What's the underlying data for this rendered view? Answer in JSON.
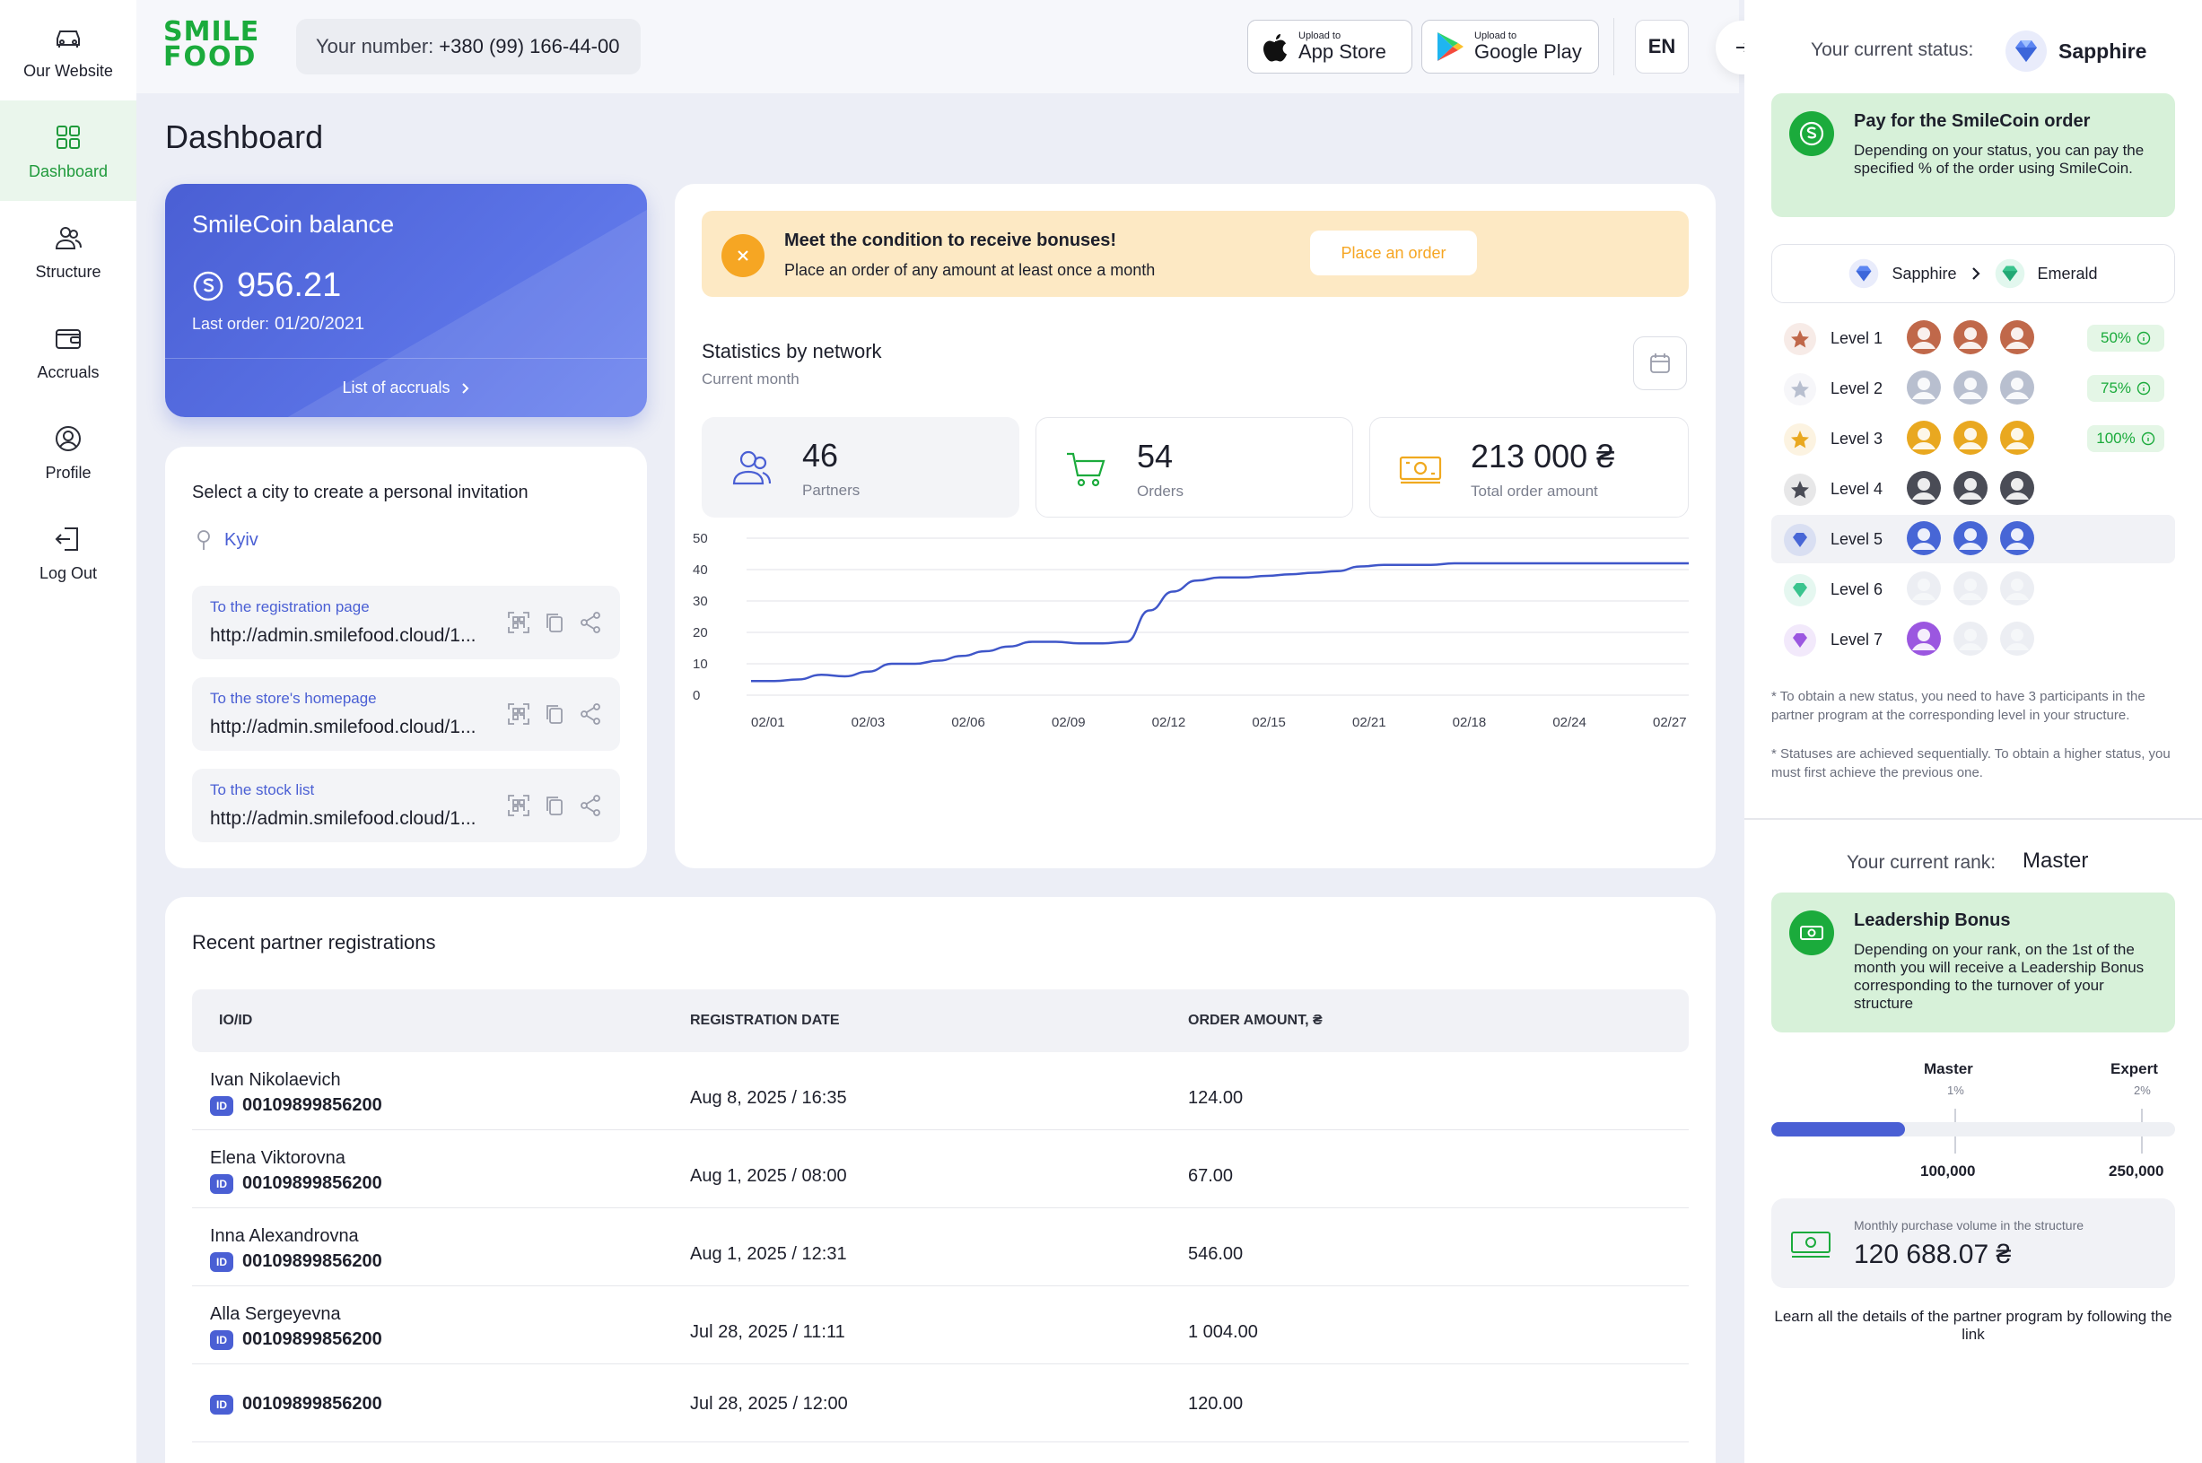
{
  "nav": {
    "items": [
      {
        "label": "Our Website",
        "icon": "car-icon"
      },
      {
        "label": "Dashboard",
        "icon": "grid-icon"
      },
      {
        "label": "Structure",
        "icon": "users-icon"
      },
      {
        "label": "Accruals",
        "icon": "wallet-icon"
      },
      {
        "label": "Profile",
        "icon": "user-icon"
      },
      {
        "label": "Log Out",
        "icon": "logout-icon"
      }
    ],
    "active": "Dashboard"
  },
  "header": {
    "logo_top": "SMILE",
    "logo_bottom": "FOOD",
    "phone_label": "Your number:",
    "phone_value": "+380 (99) 166-44-00",
    "app_store_small": "Upload to",
    "app_store": "App Store",
    "google_play_small": "Upload to",
    "google_play": "Google Play",
    "lang": "EN"
  },
  "page_title": "Dashboard",
  "balance": {
    "title": "SmileCoin balance",
    "amount": "956.21",
    "last_order_label": "Last order:",
    "last_order_date": "01/20/2021",
    "link": "List of accruals"
  },
  "city": {
    "title": "Select a city to create a personal invitation",
    "selected": "Kyiv",
    "links": [
      {
        "label": "To the registration page",
        "url": "http://admin.smilefood.cloud/1..."
      },
      {
        "label": "To the store's homepage",
        "url": "http://admin.smilefood.cloud/1..."
      },
      {
        "label": "To the stock list",
        "url": "http://admin.smilefood.cloud/1..."
      }
    ]
  },
  "banner": {
    "title": "Meet the condition to receive bonuses!",
    "text": "Place an order of any amount at least once a month",
    "button": "Place an order"
  },
  "stats": {
    "title": "Statistics by network",
    "subtitle": "Current month",
    "kpis": [
      {
        "value": "46",
        "label": "Partners"
      },
      {
        "value": "54",
        "label": "Orders"
      },
      {
        "value": "213 000 ₴",
        "label": "Total order amount"
      }
    ]
  },
  "chart_data": {
    "type": "line",
    "title": "Statistics by network",
    "xlabel": "",
    "ylabel": "",
    "ylim": [
      0,
      50
    ],
    "yticks": [
      0,
      10,
      20,
      30,
      40,
      50
    ],
    "x_tick_labels": [
      "02/01",
      "02/03",
      "02/06",
      "02/09",
      "02/12",
      "02/15",
      "02/21",
      "02/18",
      "02/24",
      "02/27"
    ],
    "grid": true,
    "color": "#3f56c9",
    "series": [
      {
        "name": "",
        "values": [
          4.5,
          4.5,
          5,
          6.5,
          6,
          7.5,
          10,
          10,
          11,
          12.5,
          14,
          15.5,
          17,
          17,
          16.5,
          16.5,
          17,
          27,
          33,
          36.5,
          37.5,
          37.5,
          38,
          38.5,
          39,
          39.5,
          41,
          41.5,
          41.5,
          41.5,
          42,
          42,
          42,
          42,
          42,
          42,
          42,
          42,
          42,
          42,
          42
        ]
      }
    ]
  },
  "recent": {
    "title": "Recent partner registrations",
    "columns": [
      "IO/ID",
      "REGISTRATION DATE",
      "ORDER AMOUNT, ₴"
    ],
    "id_badge": "ID",
    "rows": [
      {
        "name": "Ivan Nikolaevich",
        "id": "00109899856200",
        "date": "Aug 8, 2025 / 16:35",
        "amount": "124.00"
      },
      {
        "name": "Elena Viktorovna",
        "id": "00109899856200",
        "date": "Aug 1, 2025 / 08:00",
        "amount": "67.00"
      },
      {
        "name": "Inna Alexandrovna",
        "id": "00109899856200",
        "date": "Aug 1, 2025 / 12:31",
        "amount": "546.00"
      },
      {
        "name": "Alla Sergeyevna",
        "id": "00109899856200",
        "date": "Jul 28, 2025 / 11:11",
        "amount": "1 004.00"
      },
      {
        "name": "",
        "id": "00109899856200",
        "date": "Jul 28, 2025 / 12:00",
        "amount": "120.00"
      }
    ]
  },
  "right": {
    "status_label": "Your current status:",
    "status_value": "Sapphire",
    "pay_title": "Pay for the SmileCoin order",
    "pay_text": "Depending on your status, you can pay the specified % of the order using SmileCoin.",
    "progress_from": "Sapphire",
    "progress_to": "Emerald",
    "levels": [
      {
        "label": "Level 1",
        "pct": "50%",
        "color": "#c0684a"
      },
      {
        "label": "Level 2",
        "pct": "75%",
        "color": "#b8bfcf"
      },
      {
        "label": "Level 3",
        "pct": "100%",
        "color": "#e9a820"
      },
      {
        "label": "Level 4",
        "pct": "",
        "color": "#4a4c56"
      },
      {
        "label": "Level 5",
        "pct": "",
        "color": "#4766d6"
      },
      {
        "label": "Level 6",
        "pct": "",
        "color": "#3ac48e"
      },
      {
        "label": "Level 7",
        "pct": "",
        "color": "#9b57e0"
      }
    ],
    "note1": "* To obtain a new status, you need to have 3 participants in the partner program at the corresponding level in your structure.",
    "note2": "* Statuses are achieved sequentially. To obtain a higher status, you must first achieve the previous one.",
    "rank_label": "Your current rank:",
    "rank_value": "Master",
    "bonus_title": "Leadership Bonus",
    "bonus_text": "Depending on your rank, on the 1st of the month you will receive a Leadership Bonus corresponding to the turnover of your structure",
    "rank_from": "Master",
    "rank_from_pct": "1%",
    "rank_to": "Expert",
    "rank_to_pct": "2%",
    "rank_from_amount": "100,000",
    "rank_to_amount": "250,000",
    "rank_progress": 0.33,
    "volume_label": "Monthly purchase volume in the structure",
    "volume_value": "120 688.07 ₴",
    "learn_text": "Learn all the details of the partner program by following the link"
  }
}
